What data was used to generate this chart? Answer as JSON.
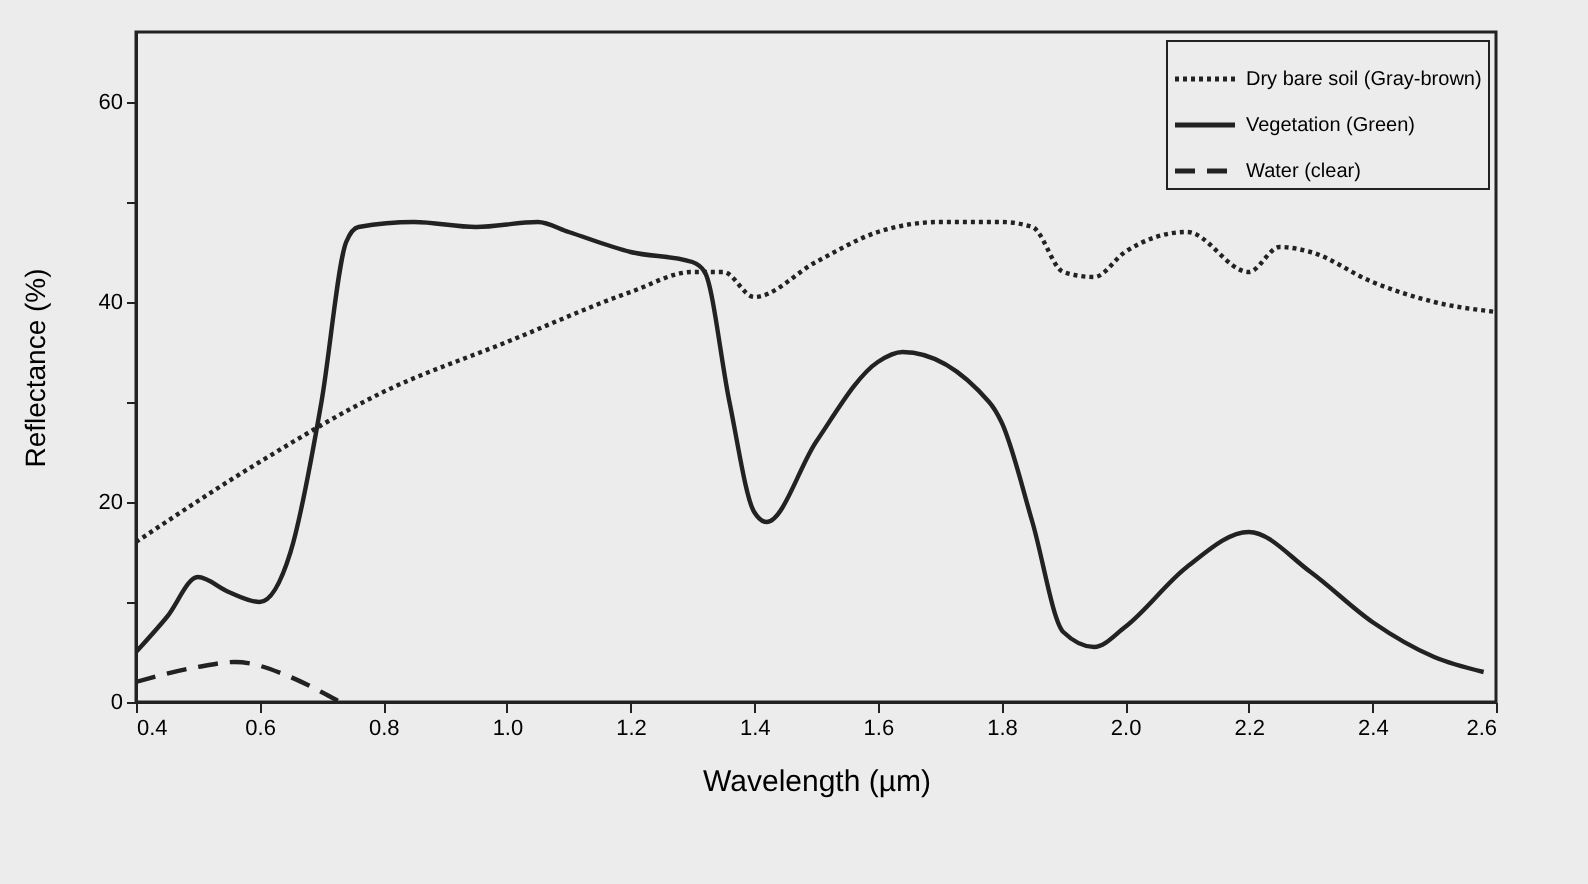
{
  "chart_data": {
    "type": "line",
    "xlabel": "Wavelength (µm)",
    "ylabel": "Reflectance (%)",
    "xlim": [
      0.4,
      2.6
    ],
    "ylim": [
      0,
      67
    ],
    "xticks": [
      0.4,
      0.6,
      0.8,
      {
        "value": 1,
        "label": "1.0"
      },
      1.2,
      1.4,
      1.6,
      1.8,
      {
        "value": 2,
        "label": "2.0"
      },
      2.2,
      2.4,
      2.6
    ],
    "yticks": [
      0,
      {
        "value": 10,
        "label": null
      },
      20,
      {
        "value": 30,
        "label": null
      },
      40,
      {
        "value": 50,
        "label": null
      },
      60
    ],
    "grid": false,
    "legend": "top right",
    "series": [
      {
        "name": "Dry bare soil (Gray-brown)",
        "color": "#222222",
        "line_style": "dotted",
        "x": [
          0.4,
          0.6,
          0.8,
          1.0,
          1.2,
          1.3,
          1.35,
          1.4,
          1.5,
          1.6,
          1.7,
          1.8,
          1.85,
          1.9,
          1.95,
          2.0,
          2.1,
          2.2,
          2.25,
          2.3,
          2.4,
          2.5,
          2.6
        ],
        "values": [
          16,
          24,
          31,
          36,
          41,
          43,
          43,
          40.5,
          44,
          47,
          48,
          48,
          47.5,
          43,
          42.5,
          45,
          47,
          43,
          45.5,
          45,
          42,
          40,
          39
        ]
      },
      {
        "name": "Vegetation (Green)",
        "color": "#222222",
        "line_style": "solid",
        "x": [
          0.4,
          0.45,
          0.5,
          0.55,
          0.6,
          0.65,
          0.7,
          0.74,
          0.76,
          0.85,
          0.95,
          1.05,
          1.1,
          1.2,
          1.3,
          1.32,
          1.36,
          1.4,
          1.42,
          1.5,
          1.6,
          1.64,
          1.78,
          1.8,
          1.85,
          1.9,
          1.95,
          2.0,
          2.1,
          2.2,
          2.3,
          2.4,
          2.5,
          2.58
        ],
        "values": [
          5,
          8.5,
          12.5,
          11,
          10,
          15,
          30,
          46,
          47.5,
          48,
          47.5,
          48,
          47,
          45,
          44,
          43,
          30,
          19,
          18,
          26,
          34,
          35,
          30,
          28,
          18,
          7,
          5.5,
          7.5,
          13.5,
          17,
          13,
          8,
          4.5,
          3
        ]
      },
      {
        "name": "Water (clear)",
        "color": "#222222",
        "line_style": "dashed",
        "x": [
          0.4,
          0.5,
          0.56,
          0.65,
          0.7,
          0.73
        ],
        "values": [
          2,
          3.5,
          4,
          2.5,
          1,
          0
        ]
      }
    ]
  }
}
